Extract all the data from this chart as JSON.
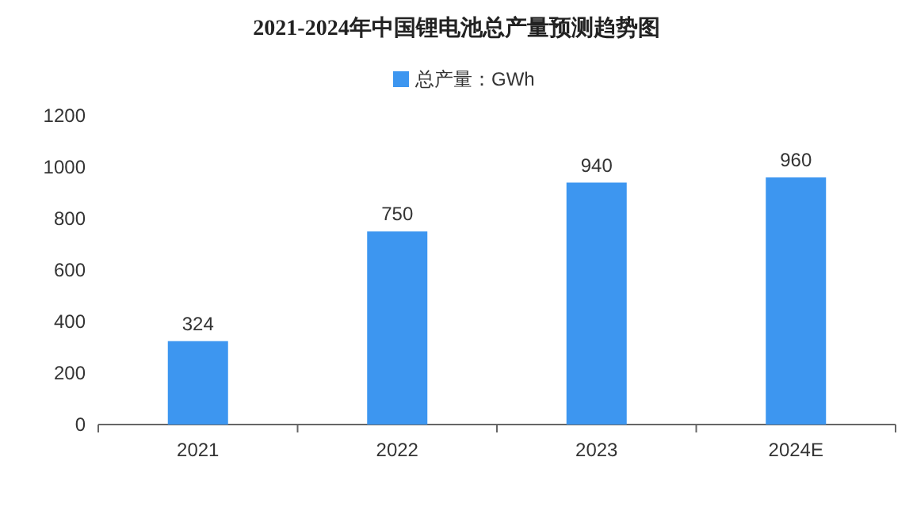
{
  "chart_data": {
    "type": "bar",
    "title": "2021-2024年中国锂电池总产量预测趋势图",
    "categories": [
      "2021",
      "2022",
      "2023",
      "2024E"
    ],
    "series": [
      {
        "name": "总产量：GWh",
        "color": "#3d96f0",
        "values": [
          324,
          750,
          940,
          960
        ]
      }
    ],
    "ylim": [
      0,
      1200
    ],
    "yticks": [
      0,
      200,
      400,
      600,
      800,
      1000,
      1200
    ],
    "data_labels": true,
    "legend": "top",
    "grid": false
  }
}
